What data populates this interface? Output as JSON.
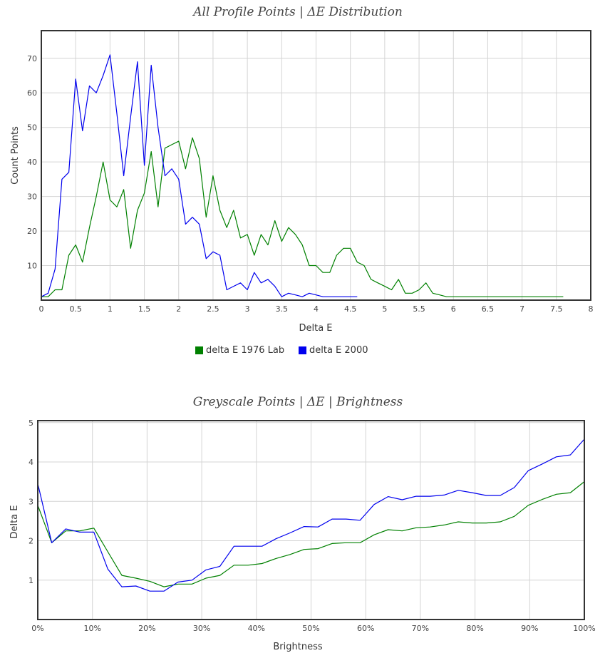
{
  "chart_data": [
    {
      "type": "line",
      "title": "All Profile Points | ΔE Distribution",
      "xlabel": "Delta E",
      "ylabel": "Count Points",
      "xlim": [
        0,
        8
      ],
      "ylim": [
        0,
        78
      ],
      "xticks": [
        0,
        0.5,
        1,
        1.5,
        2,
        2.5,
        3,
        3.5,
        4,
        4.5,
        5,
        5.5,
        6,
        6.5,
        7,
        7.5,
        8
      ],
      "yticks": [
        10,
        20,
        30,
        40,
        50,
        60,
        70
      ],
      "grid": true,
      "legend": "bottom-center",
      "series": [
        {
          "name": "delta E 1976 Lab",
          "color": "#008000",
          "x": [
            0,
            0.1,
            0.2,
            0.3,
            0.4,
            0.5,
            0.6,
            0.7,
            0.8,
            0.9,
            1.0,
            1.1,
            1.2,
            1.3,
            1.4,
            1.5,
            1.6,
            1.7,
            1.8,
            1.9,
            2.0,
            2.1,
            2.2,
            2.3,
            2.4,
            2.5,
            2.6,
            2.7,
            2.8,
            2.9,
            3.0,
            3.1,
            3.2,
            3.3,
            3.4,
            3.5,
            3.6,
            3.7,
            3.8,
            3.9,
            4.0,
            4.1,
            4.2,
            4.3,
            4.4,
            4.5,
            4.6,
            4.7,
            4.8,
            4.9,
            5.0,
            5.1,
            5.2,
            5.3,
            5.4,
            5.5,
            5.6,
            5.7,
            5.8,
            5.9,
            6.0,
            6.5,
            7.0,
            7.5,
            7.6
          ],
          "y": [
            1,
            1,
            3,
            3,
            13,
            16,
            11,
            21,
            30,
            40,
            29,
            27,
            32,
            15,
            26,
            31,
            43,
            27,
            44,
            45,
            46,
            38,
            47,
            41,
            24,
            36,
            26,
            21,
            26,
            18,
            19,
            13,
            19,
            16,
            23,
            17,
            21,
            19,
            16,
            10,
            10,
            8,
            8,
            13,
            15,
            15,
            11,
            10,
            6,
            5,
            4,
            3,
            6,
            2,
            2,
            3,
            5,
            2,
            1.5,
            1,
            1,
            1,
            1,
            1,
            1
          ]
        },
        {
          "name": "delta E 2000",
          "color": "#0000ee",
          "x": [
            0,
            0.1,
            0.2,
            0.3,
            0.4,
            0.5,
            0.6,
            0.7,
            0.8,
            0.9,
            1.0,
            1.1,
            1.2,
            1.3,
            1.4,
            1.5,
            1.6,
            1.7,
            1.8,
            1.9,
            2.0,
            2.1,
            2.2,
            2.3,
            2.4,
            2.5,
            2.6,
            2.7,
            2.8,
            2.9,
            3.0,
            3.1,
            3.2,
            3.3,
            3.4,
            3.5,
            3.6,
            3.7,
            3.8,
            3.9,
            4.0,
            4.1,
            4.2,
            4.3,
            4.4,
            4.5,
            4.6
          ],
          "y": [
            1,
            2,
            9,
            35,
            37,
            64,
            49,
            62,
            60,
            65,
            71,
            54,
            36,
            53,
            69,
            39,
            68,
            50,
            36,
            38,
            35,
            22,
            24,
            22,
            12,
            14,
            13,
            3,
            4,
            5,
            3,
            8,
            5,
            6,
            4,
            1,
            2,
            1.5,
            1,
            2,
            1.5,
            1,
            1,
            1,
            1,
            1,
            1
          ]
        }
      ]
    },
    {
      "type": "line",
      "title": "Greyscale Points | ΔE | Brightness",
      "xlabel": "Brightness",
      "ylabel": "Delta E",
      "xlim": [
        0,
        100
      ],
      "ylim": [
        0,
        5.05
      ],
      "xticks": [
        0,
        10,
        20,
        30,
        40,
        50,
        60,
        70,
        80,
        90,
        100
      ],
      "xtick_labels": [
        "0%",
        "10%",
        "20%",
        "30%",
        "40%",
        "50%",
        "60%",
        "70%",
        "80%",
        "90%",
        "100%"
      ],
      "yticks": [
        1,
        2,
        3,
        4,
        5
      ],
      "grid": true,
      "series": [
        {
          "name": "delta E 1976 Lab",
          "color": "#008000",
          "x": [
            0,
            2.56,
            5.13,
            7.69,
            10.26,
            12.82,
            15.38,
            17.95,
            20.51,
            23.08,
            25.64,
            28.21,
            30.77,
            33.33,
            35.9,
            38.46,
            41.03,
            43.59,
            46.15,
            48.72,
            51.28,
            53.85,
            56.41,
            58.97,
            61.54,
            64.1,
            66.67,
            69.23,
            71.79,
            74.36,
            76.92,
            79.49,
            82.05,
            84.62,
            87.18,
            89.74,
            92.31,
            94.87,
            97.44,
            100
          ],
          "y": [
            2.9,
            1.95,
            2.25,
            2.25,
            2.32,
            1.72,
            1.12,
            1.05,
            0.97,
            0.83,
            0.9,
            0.9,
            1.05,
            1.12,
            1.38,
            1.38,
            1.42,
            1.55,
            1.65,
            1.78,
            1.8,
            1.93,
            1.95,
            1.95,
            2.15,
            2.28,
            2.25,
            2.33,
            2.35,
            2.4,
            2.48,
            2.45,
            2.45,
            2.48,
            2.62,
            2.9,
            3.05,
            3.18,
            3.22,
            3.5
          ]
        },
        {
          "name": "delta E 2000",
          "color": "#0000ee",
          "x": [
            0,
            2.56,
            5.13,
            7.69,
            10.26,
            12.82,
            15.38,
            17.95,
            20.51,
            23.08,
            25.64,
            28.21,
            30.77,
            33.33,
            35.9,
            38.46,
            41.03,
            43.59,
            46.15,
            48.72,
            51.28,
            53.85,
            56.41,
            58.97,
            61.54,
            64.1,
            66.67,
            69.23,
            71.79,
            74.36,
            76.92,
            79.49,
            82.05,
            84.62,
            87.18,
            89.74,
            92.31,
            94.87,
            97.44,
            100
          ],
          "y": [
            3.45,
            1.95,
            2.3,
            2.22,
            2.22,
            1.28,
            0.83,
            0.85,
            0.72,
            0.72,
            0.95,
            1.0,
            1.26,
            1.35,
            1.86,
            1.86,
            1.86,
            2.05,
            2.2,
            2.36,
            2.35,
            2.55,
            2.55,
            2.52,
            2.92,
            3.12,
            3.04,
            3.13,
            3.13,
            3.16,
            3.28,
            3.22,
            3.15,
            3.15,
            3.35,
            3.78,
            3.95,
            4.13,
            4.18,
            4.58
          ]
        }
      ]
    }
  ]
}
